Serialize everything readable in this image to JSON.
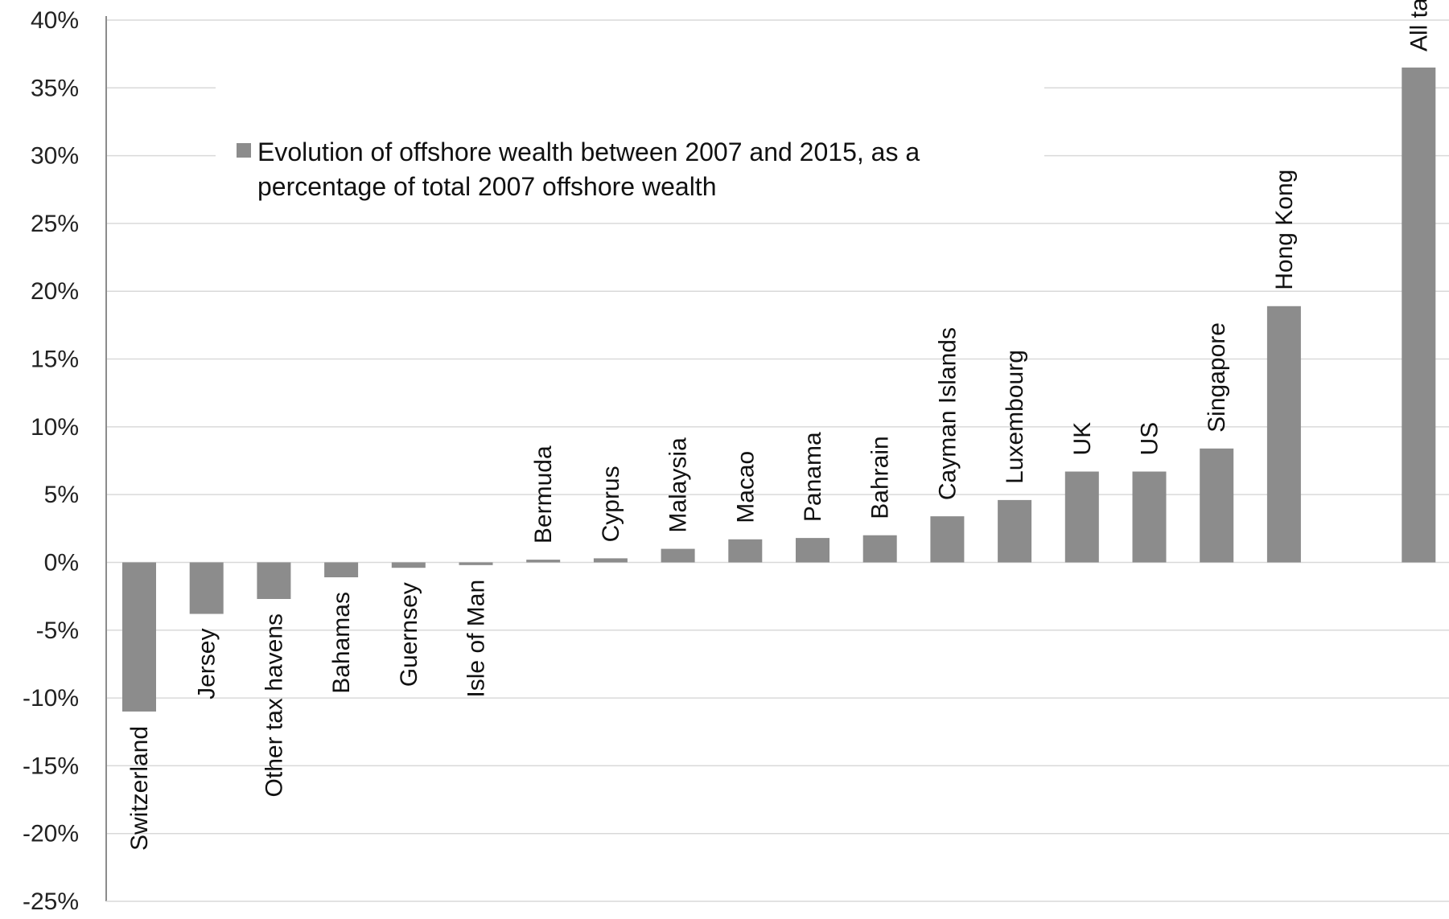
{
  "chart_data": {
    "type": "bar",
    "categories": [
      "Switzerland",
      "Jersey",
      "Other tax havens",
      "Bahamas",
      "Guernsey",
      "Isle of Man",
      "Bermuda",
      "Cyprus",
      "Malaysia",
      "Macao",
      "Panama",
      "Bahrain",
      "Cayman Islands",
      "Luxembourg",
      "UK",
      "US",
      "Singapore",
      "Hong Kong",
      "",
      "All tax havens"
    ],
    "series": [
      {
        "name": "Evolution of offshore wealth between 2007 and 2015, as a percentage of total 2007 offshore wealth",
        "values": [
          -11.0,
          -3.8,
          -2.7,
          -1.1,
          -0.4,
          -0.2,
          0.2,
          0.3,
          1.0,
          1.7,
          1.8,
          2.0,
          3.4,
          4.6,
          6.7,
          6.7,
          8.4,
          18.9,
          null,
          36.5
        ],
        "color": "#8c8c8c"
      }
    ],
    "y_ticks": [
      "40%",
      "35%",
      "30%",
      "25%",
      "20%",
      "15%",
      "10%",
      "5%",
      "0%",
      "-5%",
      "-10%",
      "-15%",
      "-20%",
      "-25%"
    ],
    "ylim": [
      -25,
      40
    ],
    "y_step": 5,
    "grid": true,
    "legend_position": "top-left",
    "title": "",
    "xlabel": "",
    "ylabel": ""
  },
  "legend": {
    "line1": "Evolution of offshore wealth between 2007 and 2015, as a",
    "line2": "percentage of total 2007 offshore wealth"
  },
  "colors": {
    "bar": "#8c8c8c",
    "grid": "#d9d9d9",
    "axis": "#8c8c8c"
  }
}
